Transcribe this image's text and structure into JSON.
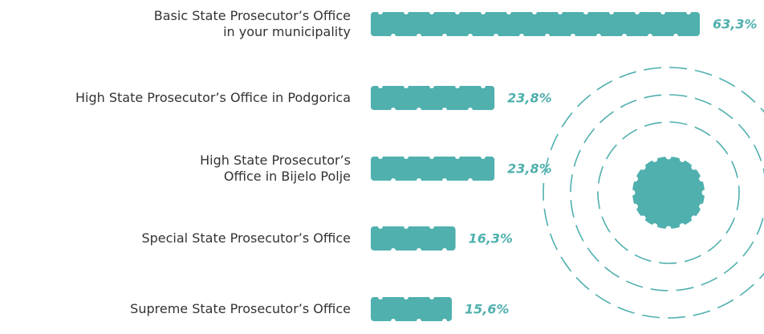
{
  "chart_data": {
    "type": "bar",
    "orientation": "horizontal",
    "categories": [
      "Basic State Prosecutor’s Office\nin your municipality",
      "High State Prosecutor’s Office in Podgorica",
      "High State Prosecutor’s\nOffice in Bijelo Polje",
      "Special State Prosecutor’s Office",
      "Supreme State Prosecutor’s Office"
    ],
    "values": [
      63.3,
      23.8,
      23.8,
      16.3,
      15.6
    ],
    "value_labels": [
      "63,3%",
      "23,8%",
      "23,8%",
      "16,3%",
      "15,6%"
    ],
    "color": "#4fb0ae"
  }
}
